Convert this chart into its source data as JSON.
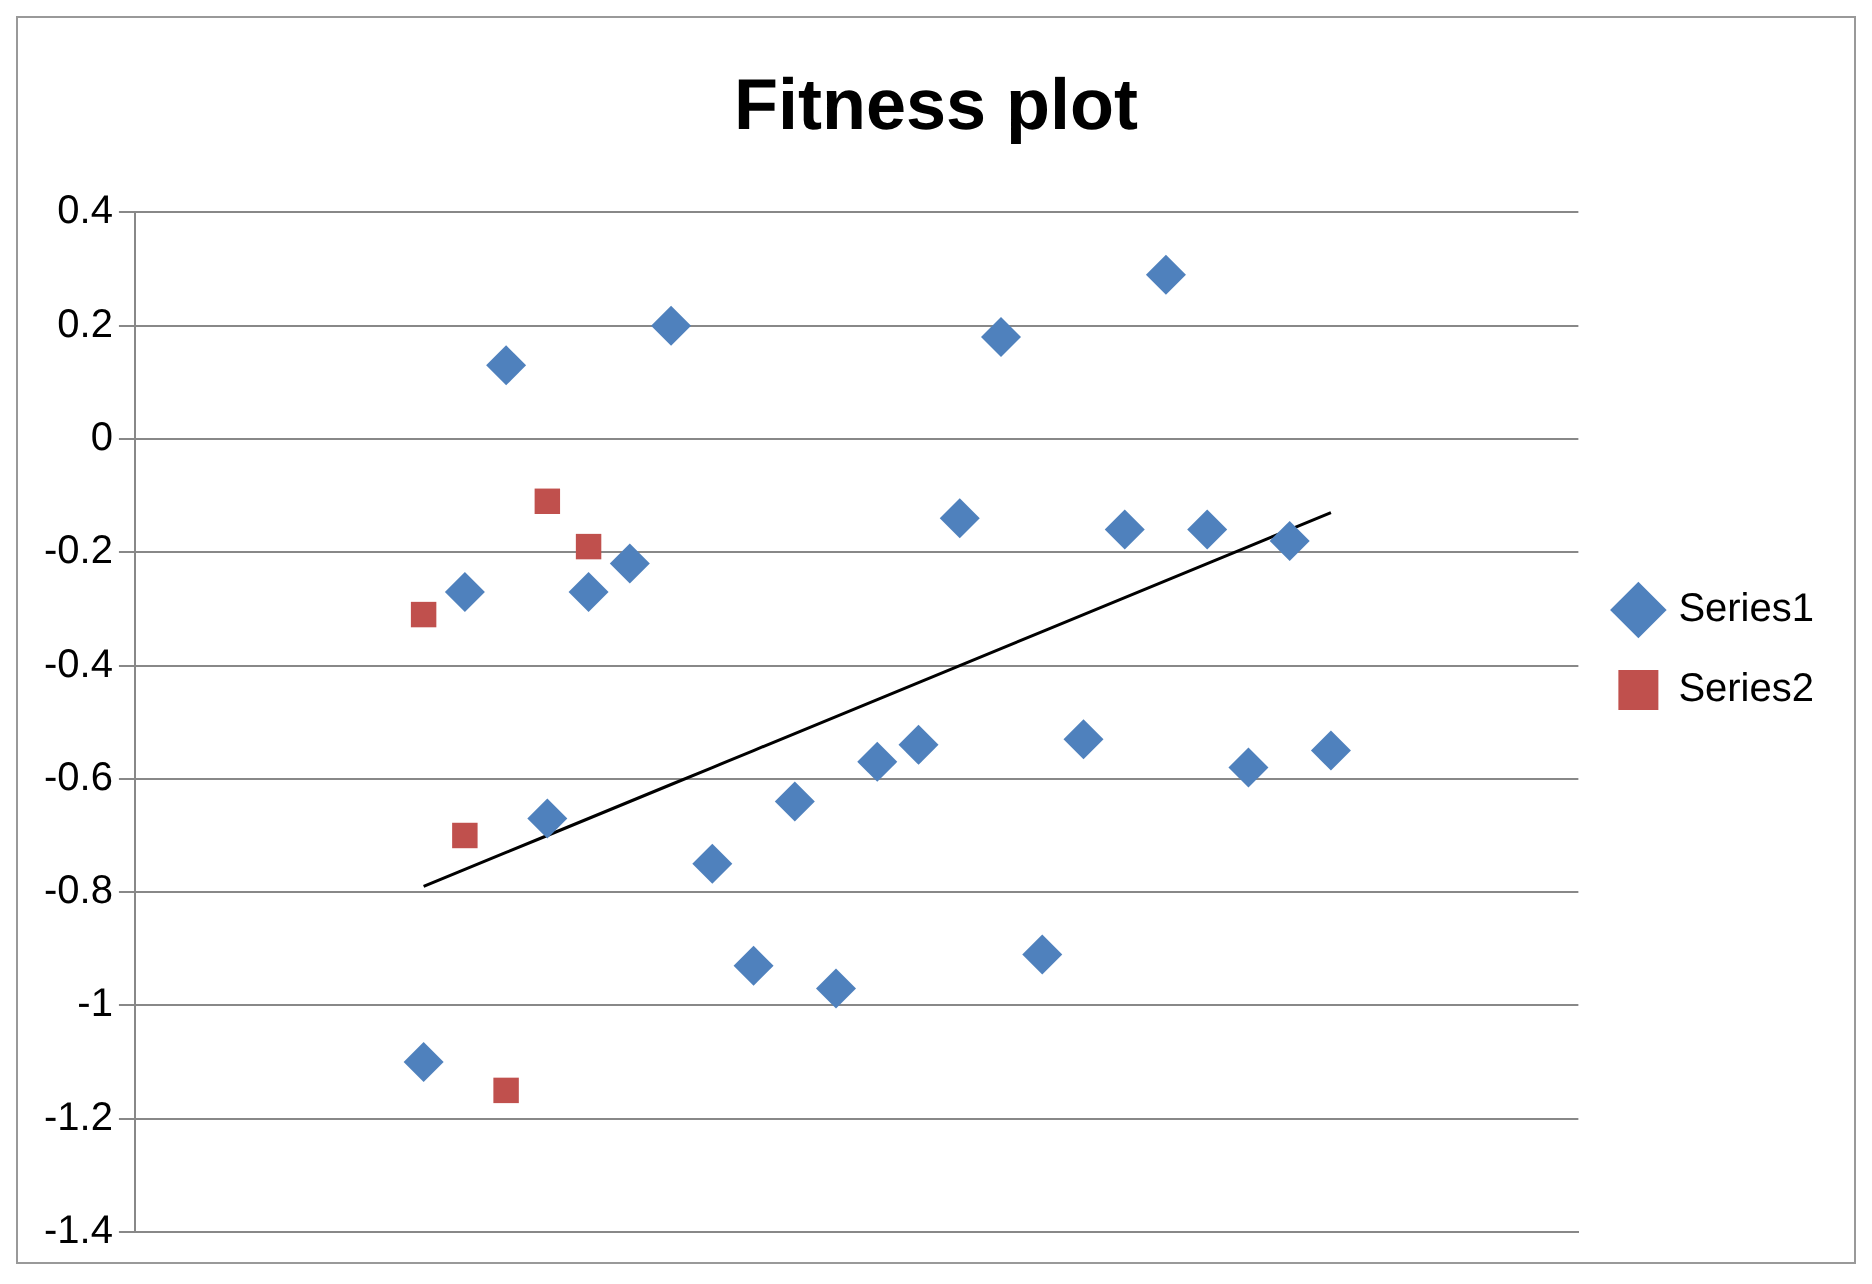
{
  "chart_data": {
    "type": "scatter",
    "title": "Fitness plot",
    "categories": [
      null,
      null,
      null,
      null,
      null,
      null,
      null,
      null,
      null,
      null,
      null,
      null,
      null,
      null,
      null,
      null,
      null,
      null,
      null,
      null,
      null,
      null,
      null,
      null,
      null,
      null,
      null,
      null,
      null,
      null,
      null,
      null,
      null,
      null,
      null,
      null
    ],
    "series": [
      {
        "name": "Series1",
        "color": "#4f81bd",
        "marker": "diamond",
        "values": [
          null,
          null,
          null,
          null,
          null,
          null,
          null,
          -1.1,
          -0.27,
          0.13,
          -0.67,
          -0.27,
          -0.22,
          0.2,
          -0.75,
          -0.93,
          -0.64,
          -0.97,
          -0.57,
          -0.54,
          -0.14,
          0.18,
          -0.91,
          -0.53,
          -0.16,
          0.29,
          -0.16,
          -0.58,
          -0.18,
          -0.55,
          null,
          null,
          null,
          null,
          null,
          null
        ]
      },
      {
        "name": "Series2",
        "color": "#c0504d",
        "marker": "square",
        "values": [
          null,
          null,
          null,
          null,
          null,
          null,
          null,
          -0.31,
          -0.7,
          -1.15,
          -0.11,
          -0.19,
          null,
          null,
          null,
          null,
          null,
          null,
          null,
          null,
          null,
          null,
          null,
          null,
          null,
          null,
          null,
          null,
          null,
          null,
          null,
          null,
          null,
          null,
          null,
          null
        ]
      },
      {
        "type": "line",
        "color": "#000000",
        "marker": "none",
        "values": [
          null,
          null,
          null,
          null,
          null,
          null,
          null,
          -0.79,
          -0.76,
          -0.73,
          -0.7,
          -0.67,
          -0.64,
          -0.61,
          -0.58,
          -0.55,
          -0.52,
          -0.49,
          -0.46,
          -0.43,
          -0.4,
          -0.37,
          -0.34,
          -0.31,
          -0.28,
          -0.25,
          -0.22,
          -0.19,
          -0.16,
          -0.13,
          null,
          null,
          null,
          null,
          null,
          null
        ]
      }
    ],
    "ylim": [
      -1.4,
      0.4
    ],
    "yticks": [
      -1.4,
      -1.2,
      -1,
      -0.8,
      -0.6,
      -0.4,
      -0.2,
      0,
      0.2,
      0.4
    ],
    "grid": "y",
    "legend": "right",
    "tick_labels": "y"
  }
}
